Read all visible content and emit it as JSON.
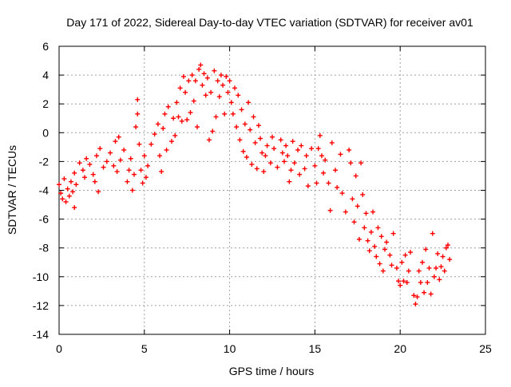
{
  "chart_data": {
    "type": "scatter",
    "title": "Day 171 of 2022, Sidereal Day-to-day VTEC variation (SDTVAR) for receiver av01",
    "xlabel": "GPS time / hours",
    "ylabel": "SDTVAR / TECUs",
    "xlim": [
      0,
      25
    ],
    "ylim": [
      -14,
      6
    ],
    "xticks": [
      0,
      5,
      10,
      15,
      20,
      25
    ],
    "xtick_labels": [
      "0",
      "5",
      "10",
      "15",
      "20",
      "25"
    ],
    "yticks": [
      -14,
      -12,
      -10,
      -8,
      -6,
      -4,
      -2,
      0,
      2,
      4,
      6
    ],
    "ytick_labels": [
      "-14",
      "-12",
      "-10",
      "-8",
      "-6",
      "-4",
      "-2",
      "0",
      "2",
      "4",
      "6"
    ],
    "grid": true,
    "marker": "+",
    "color": "#ff0000",
    "series": [
      {
        "name": "av01",
        "points": [
          [
            0.0,
            -3.6
          ],
          [
            0.1,
            -4.2
          ],
          [
            0.2,
            -4.6
          ],
          [
            0.3,
            -3.2
          ],
          [
            0.4,
            -4.8
          ],
          [
            0.5,
            -3.9
          ],
          [
            0.6,
            -4.4
          ],
          [
            0.7,
            -3.4
          ],
          [
            0.8,
            -4.1
          ],
          [
            0.9,
            -2.8
          ],
          [
            1.0,
            -3.6
          ],
          [
            0.9,
            -5.2
          ],
          [
            1.2,
            -2.1
          ],
          [
            1.4,
            -2.6
          ],
          [
            1.5,
            -3.1
          ],
          [
            1.6,
            -1.8
          ],
          [
            1.8,
            -2.2
          ],
          [
            2.0,
            -2.9
          ],
          [
            2.1,
            -3.4
          ],
          [
            2.2,
            -1.6
          ],
          [
            2.3,
            -4.1
          ],
          [
            2.4,
            -1.1
          ],
          [
            2.6,
            -2.4
          ],
          [
            2.8,
            -2.0
          ],
          [
            3.0,
            -1.4
          ],
          [
            3.2,
            -2.3
          ],
          [
            3.3,
            -0.6
          ],
          [
            3.4,
            -2.7
          ],
          [
            3.5,
            -0.3
          ],
          [
            3.6,
            -1.9
          ],
          [
            3.8,
            -1.2
          ],
          [
            4.0,
            -3.4
          ],
          [
            4.1,
            -2.6
          ],
          [
            4.2,
            -1.8
          ],
          [
            4.3,
            -4.0
          ],
          [
            4.4,
            -2.9
          ],
          [
            4.5,
            0.4
          ],
          [
            4.6,
            1.3
          ],
          [
            4.6,
            2.3
          ],
          [
            4.7,
            -0.8
          ],
          [
            4.8,
            -2.6
          ],
          [
            4.9,
            -3.5
          ],
          [
            5.0,
            -1.6
          ],
          [
            5.1,
            -3.1
          ],
          [
            5.2,
            -2.3
          ],
          [
            5.4,
            -0.8
          ],
          [
            5.6,
            -0.1
          ],
          [
            5.8,
            0.6
          ],
          [
            5.9,
            -1.6
          ],
          [
            6.0,
            -2.7
          ],
          [
            6.1,
            0.3
          ],
          [
            6.2,
            1.3
          ],
          [
            6.3,
            -1.2
          ],
          [
            6.4,
            1.8
          ],
          [
            6.6,
            -0.6
          ],
          [
            6.7,
            1.0
          ],
          [
            6.8,
            -0.2
          ],
          [
            6.9,
            2.1
          ],
          [
            7.0,
            1.1
          ],
          [
            7.1,
            3.1
          ],
          [
            7.2,
            0.8
          ],
          [
            7.3,
            3.9
          ],
          [
            7.4,
            2.8
          ],
          [
            7.5,
            0.9
          ],
          [
            7.6,
            3.6
          ],
          [
            7.7,
            1.4
          ],
          [
            7.8,
            4.0
          ],
          [
            7.9,
            2.2
          ],
          [
            8.0,
            3.6
          ],
          [
            8.1,
            0.4
          ],
          [
            8.2,
            4.4
          ],
          [
            8.3,
            4.7
          ],
          [
            8.4,
            3.3
          ],
          [
            8.5,
            4.1
          ],
          [
            8.6,
            2.6
          ],
          [
            8.7,
            3.8
          ],
          [
            8.8,
            -0.5
          ],
          [
            8.9,
            2.8
          ],
          [
            9.0,
            0.1
          ],
          [
            9.1,
            4.3
          ],
          [
            9.2,
            1.1
          ],
          [
            9.3,
            3.6
          ],
          [
            9.4,
            2.5
          ],
          [
            9.5,
            4.0
          ],
          [
            9.6,
            3.3
          ],
          [
            9.7,
            1.3
          ],
          [
            9.8,
            3.9
          ],
          [
            9.9,
            2.8
          ],
          [
            10.0,
            3.6
          ],
          [
            10.1,
            2.1
          ],
          [
            10.2,
            1.3
          ],
          [
            10.3,
            3.1
          ],
          [
            10.4,
            0.4
          ],
          [
            10.5,
            2.6
          ],
          [
            10.6,
            -0.5
          ],
          [
            10.7,
            1.6
          ],
          [
            10.8,
            -1.3
          ],
          [
            10.9,
            0.6
          ],
          [
            11.0,
            -1.7
          ],
          [
            11.1,
            2.1
          ],
          [
            11.2,
            0.2
          ],
          [
            11.3,
            -2.2
          ],
          [
            11.4,
            1.1
          ],
          [
            11.5,
            -0.7
          ],
          [
            11.6,
            -2.5
          ],
          [
            11.7,
            0.5
          ],
          [
            11.8,
            -0.4
          ],
          [
            11.9,
            -1.4
          ],
          [
            12.0,
            -2.7
          ],
          [
            12.1,
            -1.6
          ],
          [
            12.2,
            -0.9
          ],
          [
            12.4,
            -2.1
          ],
          [
            12.5,
            -0.3
          ],
          [
            12.6,
            -1.1
          ],
          [
            12.8,
            -2.4
          ],
          [
            13.0,
            -0.5
          ],
          [
            13.1,
            -1.4
          ],
          [
            13.2,
            -2.0
          ],
          [
            13.3,
            -0.9
          ],
          [
            13.4,
            -1.6
          ],
          [
            13.5,
            -3.4
          ],
          [
            13.6,
            -2.6
          ],
          [
            13.7,
            -0.6
          ],
          [
            13.8,
            -2.1
          ],
          [
            14.0,
            -1.2
          ],
          [
            14.1,
            -2.9
          ],
          [
            14.2,
            -0.9
          ],
          [
            14.4,
            -2.5
          ],
          [
            14.5,
            -1.6
          ],
          [
            14.6,
            -3.7
          ],
          [
            14.8,
            -1.1
          ],
          [
            15.0,
            -2.3
          ],
          [
            15.1,
            -3.5
          ],
          [
            15.2,
            -1.1
          ],
          [
            15.3,
            -0.2
          ],
          [
            15.4,
            -1.6
          ],
          [
            15.5,
            -2.8
          ],
          [
            15.6,
            -1.9
          ],
          [
            15.8,
            -3.5
          ],
          [
            15.9,
            -5.4
          ],
          [
            16.0,
            -0.7
          ],
          [
            16.2,
            -2.6
          ],
          [
            16.3,
            -3.8
          ],
          [
            16.5,
            -1.5
          ],
          [
            16.6,
            -4.2
          ],
          [
            16.8,
            -5.5
          ],
          [
            17.0,
            -1.2
          ],
          [
            17.1,
            -2.1
          ],
          [
            17.2,
            -4.6
          ],
          [
            17.3,
            -6.2
          ],
          [
            17.4,
            -3.0
          ],
          [
            17.5,
            -5.1
          ],
          [
            17.6,
            -7.4
          ],
          [
            17.7,
            -2.1
          ],
          [
            17.8,
            -4.3
          ],
          [
            17.9,
            -6.6
          ],
          [
            18.0,
            -5.6
          ],
          [
            18.1,
            -7.5
          ],
          [
            18.2,
            -8.2
          ],
          [
            18.3,
            -6.9
          ],
          [
            18.4,
            -5.5
          ],
          [
            18.5,
            -7.9
          ],
          [
            18.6,
            -8.6
          ],
          [
            18.7,
            -6.6
          ],
          [
            18.8,
            -9.1
          ],
          [
            18.9,
            -7.2
          ],
          [
            19.0,
            -9.6
          ],
          [
            19.1,
            -8.1
          ],
          [
            19.2,
            -7.6
          ],
          [
            19.4,
            -8.5
          ],
          [
            19.5,
            -9.2
          ],
          [
            19.6,
            -7.0
          ],
          [
            19.8,
            -9.4
          ],
          [
            19.9,
            -10.3
          ],
          [
            20.0,
            -10.6
          ],
          [
            20.1,
            -9.0
          ],
          [
            20.2,
            -10.3
          ],
          [
            20.3,
            -8.5
          ],
          [
            20.4,
            -10.4
          ],
          [
            20.5,
            -9.6
          ],
          [
            20.6,
            -8.3
          ],
          [
            20.8,
            -11.3
          ],
          [
            20.9,
            -11.9
          ],
          [
            21.0,
            -11.4
          ],
          [
            21.1,
            -9.6
          ],
          [
            21.2,
            -10.4
          ],
          [
            21.3,
            -9.0
          ],
          [
            21.4,
            -11.1
          ],
          [
            21.5,
            -8.1
          ],
          [
            21.6,
            -10.4
          ],
          [
            21.7,
            -9.4
          ],
          [
            21.8,
            -11.2
          ],
          [
            21.9,
            -7.0
          ],
          [
            22.0,
            -10.0
          ],
          [
            22.1,
            -9.4
          ],
          [
            22.2,
            -8.4
          ],
          [
            22.3,
            -10.2
          ],
          [
            22.4,
            -9.3
          ],
          [
            22.5,
            -8.6
          ],
          [
            22.6,
            -9.6
          ],
          [
            22.7,
            -8.0
          ],
          [
            22.8,
            -7.8
          ],
          [
            22.9,
            -8.8
          ]
        ]
      }
    ]
  }
}
